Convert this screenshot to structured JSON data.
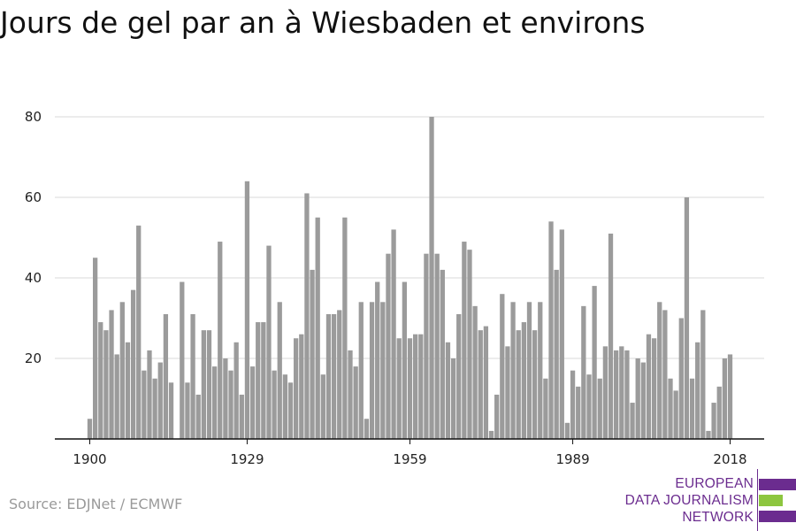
{
  "chart_data": {
    "type": "bar",
    "title": "Jours de gel par an à Wiesbaden et environs",
    "xlabel": "",
    "ylabel": "",
    "x": [
      1900,
      1901,
      1902,
      1903,
      1904,
      1905,
      1906,
      1907,
      1908,
      1909,
      1910,
      1911,
      1912,
      1913,
      1914,
      1915,
      1916,
      1917,
      1918,
      1919,
      1920,
      1921,
      1922,
      1923,
      1924,
      1925,
      1926,
      1927,
      1928,
      1929,
      1930,
      1931,
      1932,
      1933,
      1934,
      1935,
      1936,
      1937,
      1938,
      1939,
      1940,
      1941,
      1942,
      1943,
      1944,
      1945,
      1946,
      1947,
      1948,
      1949,
      1950,
      1951,
      1952,
      1953,
      1954,
      1955,
      1956,
      1957,
      1958,
      1959,
      1960,
      1961,
      1962,
      1963,
      1964,
      1965,
      1966,
      1967,
      1968,
      1969,
      1970,
      1971,
      1972,
      1973,
      1974,
      1975,
      1976,
      1977,
      1978,
      1979,
      1980,
      1981,
      1982,
      1983,
      1984,
      1985,
      1986,
      1987,
      1988,
      1989,
      1990,
      1991,
      1992,
      1993,
      1994,
      1995,
      1996,
      1997,
      1998,
      1999,
      2000,
      2001,
      2002,
      2003,
      2004,
      2005,
      2006,
      2007,
      2008,
      2009,
      2010,
      2011,
      2012,
      2013,
      2014,
      2015,
      2016,
      2017,
      2018
    ],
    "values": [
      5,
      45,
      29,
      27,
      32,
      21,
      34,
      24,
      37,
      53,
      17,
      22,
      15,
      19,
      31,
      14,
      0,
      39,
      14,
      31,
      11,
      27,
      27,
      18,
      49,
      20,
      17,
      24,
      11,
      64,
      18,
      29,
      29,
      48,
      17,
      34,
      16,
      14,
      25,
      26,
      61,
      42,
      55,
      16,
      31,
      31,
      32,
      55,
      22,
      18,
      34,
      5,
      34,
      39,
      34,
      46,
      52,
      25,
      39,
      25,
      26,
      26,
      46,
      80,
      46,
      42,
      24,
      20,
      31,
      49,
      47,
      33,
      27,
      28,
      2,
      11,
      36,
      23,
      34,
      27,
      29,
      34,
      27,
      34,
      15,
      54,
      42,
      52,
      4,
      17,
      13,
      33,
      16,
      38,
      15,
      23,
      51,
      22,
      23,
      22,
      9,
      20,
      19,
      26,
      25,
      34,
      32,
      15,
      12,
      30,
      60,
      15,
      24,
      32,
      2,
      9,
      13,
      20,
      21
    ],
    "xticks": [
      "1900",
      "1929",
      "1959",
      "1989",
      "2018"
    ],
    "xtick_years": [
      1900,
      1929,
      1959,
      1989,
      2018
    ],
    "yticks": [
      "20",
      "40",
      "60",
      "80"
    ],
    "ylim": [
      0,
      85
    ],
    "grid": true,
    "bar_color": "#9b9b9b"
  },
  "footer": {
    "source": "Source: EDJNet / ECMWF",
    "logo_lines": [
      "EUROPEAN",
      "DATA JOURNALISM",
      "NETWORK"
    ],
    "logo_purple": "#6b2c8f",
    "logo_green": "#8dc63f"
  }
}
